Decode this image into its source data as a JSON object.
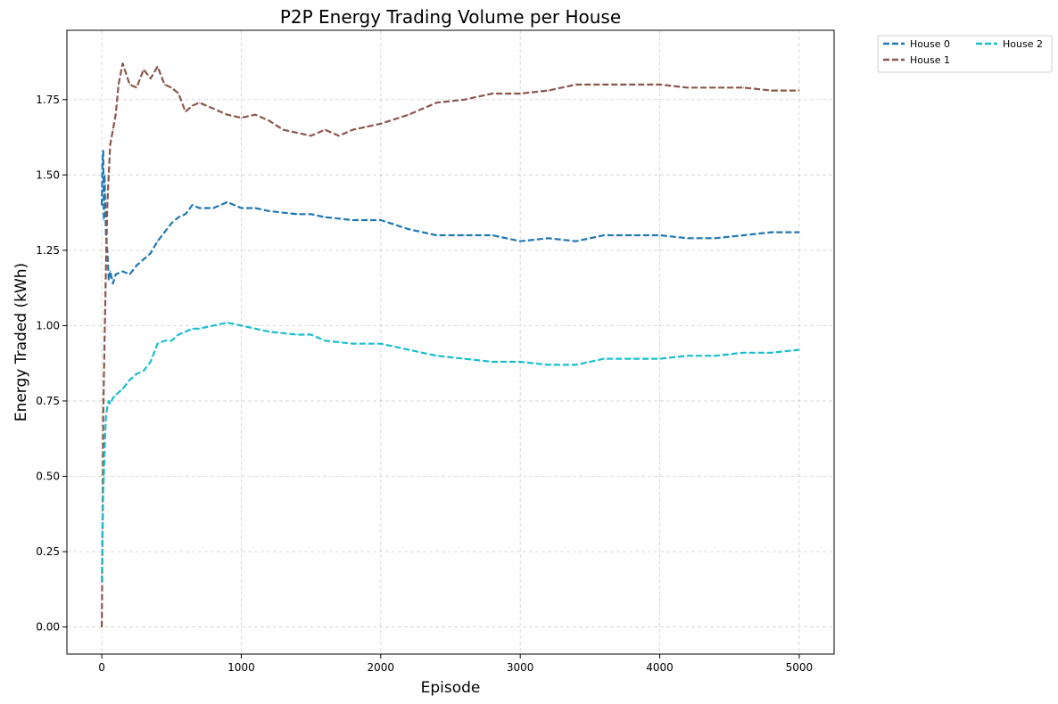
{
  "chart_data": {
    "type": "line",
    "title": "P2P Energy Trading Volume per House",
    "xlabel": "Episode",
    "ylabel": "Energy Traded (kWh)",
    "xlim": [
      -250,
      5250
    ],
    "ylim": [
      -0.09,
      1.98
    ],
    "xticks": [
      0,
      1000,
      2000,
      3000,
      4000,
      5000
    ],
    "yticks": [
      0.0,
      0.25,
      0.5,
      0.75,
      1.0,
      1.25,
      1.5,
      1.75
    ],
    "ytick_labels": [
      "0.00",
      "0.25",
      "0.50",
      "0.75",
      "1.00",
      "1.25",
      "1.50",
      "1.75"
    ],
    "grid": true,
    "legend_position": "outside top-right",
    "line_style": "dashed",
    "series": [
      {
        "name": "House 0",
        "color": "#1f77b4",
        "x": [
          0,
          5,
          10,
          15,
          20,
          30,
          40,
          50,
          60,
          80,
          100,
          150,
          200,
          250,
          300,
          350,
          400,
          450,
          500,
          550,
          600,
          650,
          700,
          800,
          900,
          1000,
          1100,
          1200,
          1400,
          1500,
          1600,
          1800,
          2000,
          2200,
          2400,
          2600,
          2800,
          3000,
          3200,
          3400,
          3600,
          3800,
          4000,
          4200,
          4400,
          4600,
          4800,
          5000
        ],
        "y": [
          1.4,
          1.55,
          1.58,
          1.35,
          1.5,
          1.3,
          1.25,
          1.15,
          1.18,
          1.14,
          1.17,
          1.18,
          1.17,
          1.2,
          1.22,
          1.24,
          1.28,
          1.31,
          1.34,
          1.36,
          1.37,
          1.4,
          1.39,
          1.39,
          1.41,
          1.39,
          1.39,
          1.38,
          1.37,
          1.37,
          1.36,
          1.35,
          1.35,
          1.32,
          1.3,
          1.3,
          1.3,
          1.28,
          1.29,
          1.28,
          1.3,
          1.3,
          1.3,
          1.29,
          1.29,
          1.3,
          1.31,
          1.31
        ]
      },
      {
        "name": "House 1",
        "color": "#8c564b",
        "x": [
          0,
          5,
          10,
          20,
          30,
          40,
          50,
          60,
          80,
          100,
          120,
          150,
          200,
          250,
          300,
          350,
          400,
          450,
          500,
          550,
          600,
          650,
          700,
          800,
          900,
          1000,
          1100,
          1200,
          1300,
          1400,
          1500,
          1600,
          1700,
          1800,
          1900,
          2000,
          2200,
          2400,
          2600,
          2800,
          3000,
          3200,
          3400,
          3600,
          3800,
          4000,
          4200,
          4400,
          4600,
          4800,
          5000
        ],
        "y": [
          0.0,
          0.3,
          0.7,
          0.95,
          1.2,
          1.4,
          1.5,
          1.6,
          1.65,
          1.7,
          1.8,
          1.87,
          1.8,
          1.79,
          1.85,
          1.82,
          1.86,
          1.8,
          1.79,
          1.77,
          1.71,
          1.73,
          1.74,
          1.72,
          1.7,
          1.69,
          1.7,
          1.68,
          1.65,
          1.64,
          1.63,
          1.65,
          1.63,
          1.65,
          1.66,
          1.67,
          1.7,
          1.74,
          1.75,
          1.77,
          1.77,
          1.78,
          1.8,
          1.8,
          1.8,
          1.8,
          1.79,
          1.79,
          1.79,
          1.78,
          1.78
        ]
      },
      {
        "name": "House 2",
        "color": "#17becf",
        "x": [
          0,
          5,
          10,
          15,
          20,
          30,
          40,
          50,
          60,
          80,
          100,
          150,
          200,
          250,
          300,
          350,
          400,
          450,
          500,
          550,
          600,
          650,
          700,
          800,
          900,
          1000,
          1100,
          1200,
          1400,
          1500,
          1600,
          1800,
          2000,
          2200,
          2400,
          2600,
          2800,
          3000,
          3200,
          3400,
          3600,
          3800,
          4000,
          4200,
          4400,
          4600,
          4800,
          5000
        ],
        "y": [
          0.15,
          0.3,
          0.45,
          0.5,
          0.58,
          0.7,
          0.73,
          0.75,
          0.74,
          0.76,
          0.77,
          0.79,
          0.82,
          0.84,
          0.85,
          0.88,
          0.94,
          0.95,
          0.95,
          0.97,
          0.98,
          0.99,
          0.99,
          1.0,
          1.01,
          1.0,
          0.99,
          0.98,
          0.97,
          0.97,
          0.95,
          0.94,
          0.94,
          0.92,
          0.9,
          0.89,
          0.88,
          0.88,
          0.87,
          0.87,
          0.89,
          0.89,
          0.89,
          0.9,
          0.9,
          0.91,
          0.91,
          0.92
        ]
      }
    ]
  }
}
